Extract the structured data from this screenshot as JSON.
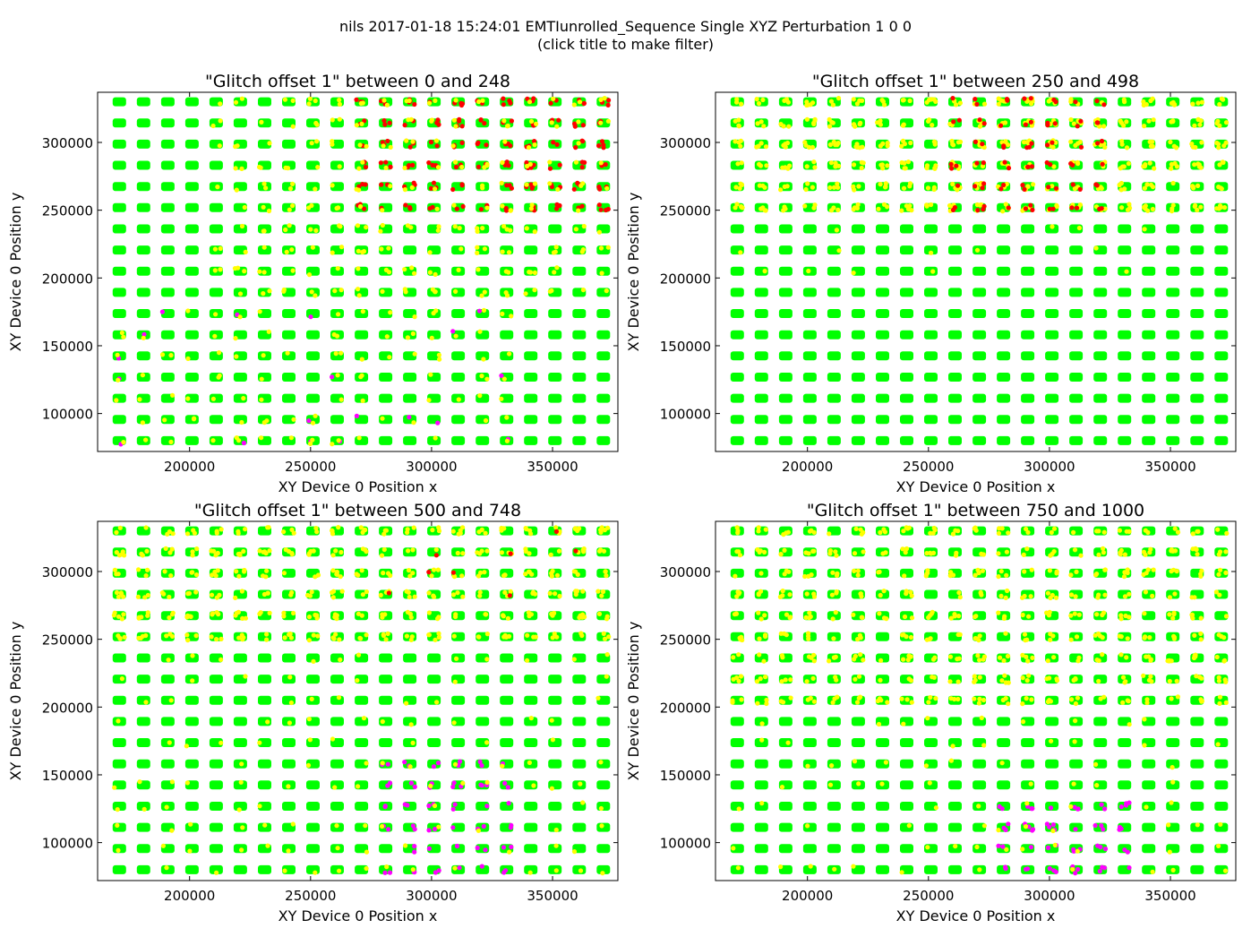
{
  "figure": {
    "title_line1": "nils 2017-01-18 15:24:01 EMTIunrolled_Sequence Single XYZ Perturbation 1 0 0",
    "title_line2": "(click title to make filter)"
  },
  "colors": {
    "pass": "#00ff00",
    "warning": "#ffff00",
    "glitch": "#ff0000",
    "other": "#ff00ff"
  },
  "chart_data": [
    {
      "type": "scatter",
      "title": "\"Glitch offset 1\" between 0 and 248",
      "xlabel": "XY Device 0 Position  x",
      "ylabel": "XY Device 0 Position  y",
      "xlim": [
        162000,
        377000
      ],
      "ylim": [
        72000,
        337000
      ],
      "xticks": [
        "200000",
        "250000",
        "300000",
        "350000"
      ],
      "yticks": [
        "100000",
        "150000",
        "200000",
        "250000",
        "300000"
      ],
      "grid_x": [
        171000,
        371000,
        21
      ],
      "grid_y": [
        80000,
        330000,
        17
      ],
      "hotspots": [
        {
          "series": "glitch",
          "x": [
            270000,
            371000
          ],
          "y": [
            245000,
            330000
          ],
          "weight": 0.5
        },
        {
          "series": "warning",
          "x": [
            210000,
            371000
          ],
          "y": [
            180000,
            330000
          ],
          "weight": 0.35
        },
        {
          "series": "other",
          "x": [
            170000,
            340000
          ],
          "y": [
            80000,
            185000
          ],
          "weight": 0.12
        },
        {
          "series": "warning",
          "x": [
            170000,
            340000
          ],
          "y": [
            80000,
            180000
          ],
          "weight": 0.25
        }
      ]
    },
    {
      "type": "scatter",
      "title": "\"Glitch offset 1\" between 250 and 498",
      "xlabel": "XY Device 0 Position  x",
      "ylabel": "XY Device 0 Position  y",
      "xlim": [
        162000,
        377000
      ],
      "ylim": [
        72000,
        337000
      ],
      "xticks": [
        "200000",
        "250000",
        "300000",
        "350000"
      ],
      "yticks": [
        "100000",
        "150000",
        "200000",
        "250000",
        "300000"
      ],
      "grid_x": [
        171000,
        371000,
        21
      ],
      "grid_y": [
        80000,
        330000,
        17
      ],
      "hotspots": [
        {
          "series": "warning",
          "x": [
            170000,
            371000
          ],
          "y": [
            245000,
            330000
          ],
          "weight": 0.6
        },
        {
          "series": "glitch",
          "x": [
            260000,
            330000
          ],
          "y": [
            250000,
            330000
          ],
          "weight": 0.4
        },
        {
          "series": "warning",
          "x": [
            170000,
            371000
          ],
          "y": [
            200000,
            245000
          ],
          "weight": 0.12
        }
      ]
    },
    {
      "type": "scatter",
      "title": "\"Glitch offset 1\" between 500 and 748",
      "xlabel": "XY Device 0 Position  x",
      "ylabel": "XY Device 0 Position  y",
      "xlim": [
        162000,
        377000
      ],
      "ylim": [
        72000,
        337000
      ],
      "xticks": [
        "200000",
        "250000",
        "300000",
        "350000"
      ],
      "yticks": [
        "100000",
        "150000",
        "200000",
        "250000",
        "300000"
      ],
      "grid_x": [
        171000,
        371000,
        21
      ],
      "grid_y": [
        80000,
        330000,
        17
      ],
      "hotspots": [
        {
          "series": "warning",
          "x": [
            170000,
            371000
          ],
          "y": [
            240000,
            330000
          ],
          "weight": 0.55
        },
        {
          "series": "glitch",
          "x": [
            280000,
            371000
          ],
          "y": [
            255000,
            330000
          ],
          "weight": 0.12
        },
        {
          "series": "other",
          "x": [
            280000,
            335000
          ],
          "y": [
            80000,
            165000
          ],
          "weight": 0.4
        },
        {
          "series": "warning",
          "x": [
            170000,
            371000
          ],
          "y": [
            80000,
            240000
          ],
          "weight": 0.2
        }
      ]
    },
    {
      "type": "scatter",
      "title": "\"Glitch offset 1\" between 750 and 1000",
      "xlabel": "XY Device 0 Position  x",
      "ylabel": "XY Device 0 Position  y",
      "xlim": [
        162000,
        377000
      ],
      "ylim": [
        72000,
        337000
      ],
      "xticks": [
        "200000",
        "250000",
        "300000",
        "350000"
      ],
      "yticks": [
        "100000",
        "150000",
        "200000",
        "250000",
        "300000"
      ],
      "grid_x": [
        171000,
        371000,
        21
      ],
      "grid_y": [
        80000,
        330000,
        17
      ],
      "hotspots": [
        {
          "series": "warning",
          "x": [
            170000,
            371000
          ],
          "y": [
            200000,
            330000
          ],
          "weight": 0.5
        },
        {
          "series": "other",
          "x": [
            280000,
            335000
          ],
          "y": [
            80000,
            140000
          ],
          "weight": 0.45
        },
        {
          "series": "warning",
          "x": [
            170000,
            371000
          ],
          "y": [
            80000,
            200000
          ],
          "weight": 0.18
        }
      ]
    }
  ]
}
